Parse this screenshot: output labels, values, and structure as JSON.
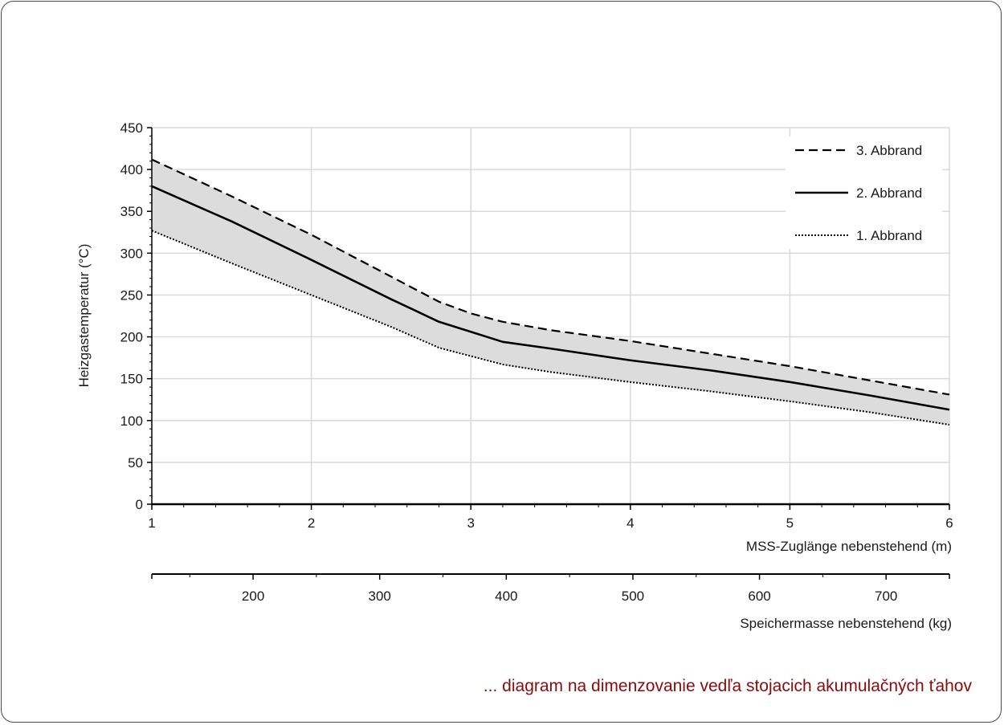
{
  "caption": "... diagram na dimenzovanie vedľa stojacich akumulačných ťahov",
  "chart_data": {
    "type": "line",
    "ylabel": "Heizgastemperatur (°C)",
    "xlabel": "MSS-Zuglänge nebenstehend (m)",
    "x2label": "Speichermasse nebenstehend (kg)",
    "xlim": [
      1,
      6
    ],
    "ylim": [
      0,
      450
    ],
    "x_ticks": [
      "1",
      "2",
      "3",
      "4",
      "5",
      "6"
    ],
    "y_ticks": [
      "0",
      "50",
      "100",
      "150",
      "200",
      "250",
      "300",
      "350",
      "400",
      "450"
    ],
    "x2_ticks": [
      "200",
      "300",
      "400",
      "500",
      "600",
      "700"
    ],
    "x2_tick_values": [
      200,
      300,
      400,
      500,
      600,
      700
    ],
    "x2lim": [
      120,
      750
    ],
    "grid": true,
    "legend_position": "top-right",
    "shaded_band": "between 1. Abbrand and 3. Abbrand",
    "colors": {
      "line": "#000000",
      "band": "#dcdcdc",
      "grid": "#d9d9d9",
      "caption": "#8b0b0b"
    },
    "series": [
      {
        "name": "3. Abbrand",
        "style": "dashed",
        "x": [
          1,
          1.5,
          2,
          2.5,
          2.8,
          3,
          3.2,
          3.5,
          4,
          4.5,
          5,
          5.5,
          6
        ],
        "y": [
          412,
          368,
          322,
          272,
          242,
          228,
          218,
          208,
          195,
          180,
          165,
          148,
          131
        ]
      },
      {
        "name": "2. Abbrand",
        "style": "solid",
        "x": [
          1,
          1.5,
          2,
          2.5,
          2.8,
          3,
          3.2,
          3.5,
          4,
          4.5,
          5,
          5.5,
          6
        ],
        "y": [
          380,
          338,
          292,
          245,
          218,
          206,
          194,
          186,
          172,
          160,
          146,
          130,
          113
        ]
      },
      {
        "name": "1. Abbrand",
        "style": "dotted",
        "x": [
          1,
          1.5,
          2,
          2.5,
          2.8,
          3,
          3.2,
          3.5,
          4,
          4.5,
          5,
          5.5,
          6
        ],
        "y": [
          327,
          288,
          250,
          212,
          187,
          177,
          167,
          158,
          146,
          135,
          123,
          110,
          95
        ]
      }
    ]
  }
}
